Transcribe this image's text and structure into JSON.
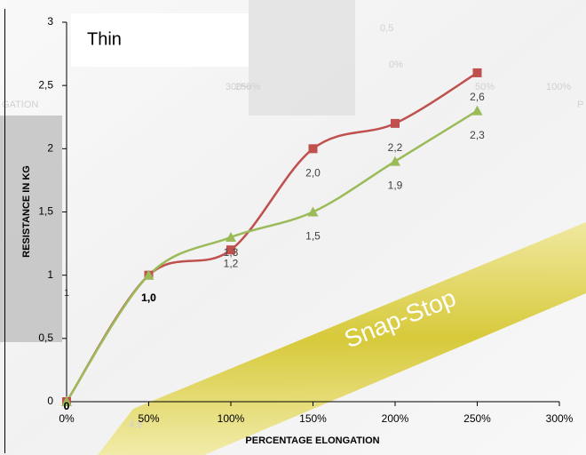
{
  "chart_data": {
    "type": "line",
    "title": "Thin",
    "x_label": "PERCENTAGE  ELONGATION",
    "y_label": "RESISTANCE  IN  KG",
    "x": [
      0,
      50,
      100,
      150,
      200,
      250
    ],
    "series": [
      {
        "name": "red",
        "color": "#c0504d",
        "marker": "square",
        "values": [
          0,
          1.0,
          1.2,
          2.0,
          2.2,
          2.6
        ],
        "value_labels": [
          "0",
          "1,0",
          "1,2",
          "2,0",
          "2,2",
          "2,6"
        ]
      },
      {
        "name": "green",
        "color": "#9bbb59",
        "marker": "triangle",
        "values": [
          0,
          1.0,
          1.3,
          1.5,
          1.9,
          2.3
        ],
        "value_labels": [
          "0",
          "1,0",
          "1,3",
          "1,5",
          "1,9",
          "2,3"
        ]
      }
    ],
    "xlim": [
      0,
      300
    ],
    "xticks": [
      {
        "value": 0,
        "label": "0%"
      },
      {
        "value": 50,
        "label": "50%"
      },
      {
        "value": 100,
        "label": "100%"
      },
      {
        "value": 150,
        "label": "150%"
      },
      {
        "value": 200,
        "label": "200%"
      },
      {
        "value": 250,
        "label": "250%"
      },
      {
        "value": 300,
        "label": "300%"
      }
    ],
    "ylim": [
      0,
      3
    ],
    "yticks": [
      0,
      {
        "value": 0.5,
        "label": "0,5"
      },
      1,
      {
        "value": 1.5,
        "label": "1,5"
      },
      2,
      {
        "value": 2.5,
        "label": "2,5"
      },
      3
    ],
    "grid": false
  },
  "background_labels": [
    "250%",
    "300%",
    "GATION",
    "0,5",
    "0%",
    "50%",
    "100%",
    "P",
    "4,9",
    "1",
    "Snap-Stop"
  ]
}
